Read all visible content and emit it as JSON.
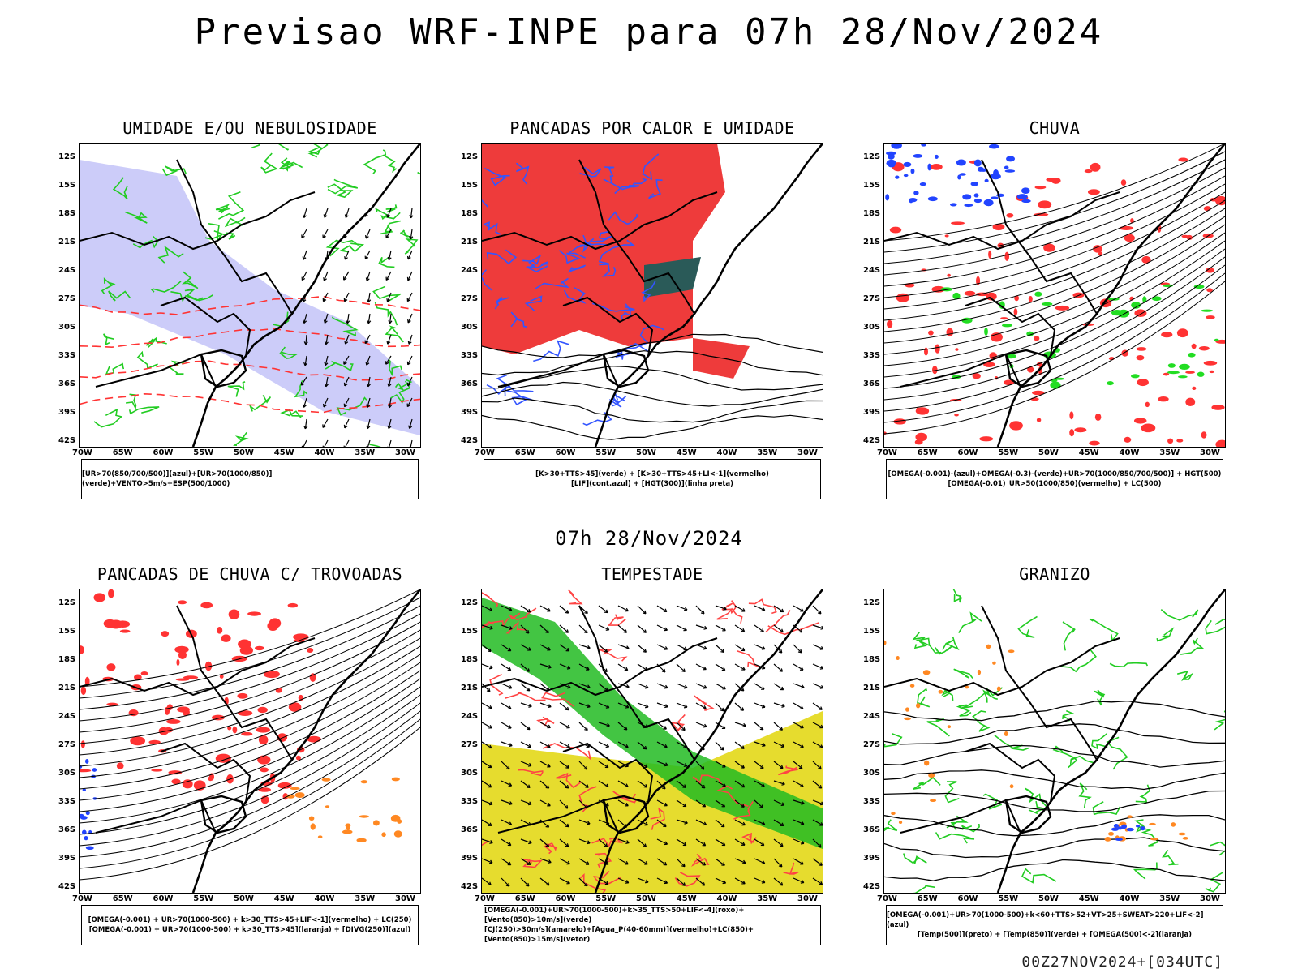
{
  "header": {
    "title": "Previsao WRF-INPE  para 07h 28/Nov/2024",
    "subtitle": "07h 28/Nov/2024",
    "footer": "00Z27NOV2024+[034UTC]"
  },
  "axes": {
    "lat_labels": [
      "12S",
      "15S",
      "18S",
      "21S",
      "24S",
      "27S",
      "30S",
      "33S",
      "36S",
      "39S",
      "42S"
    ],
    "lon_labels": [
      "70W",
      "65W",
      "60W",
      "55W",
      "50W",
      "45W",
      "40W",
      "35W",
      "30W"
    ]
  },
  "panels": [
    {
      "title": "UMIDADE E/OU NEBULOSIDADE",
      "legend_lines": [
        "[UR>70(850/700/500)](azul)+[UR>70(1000/850)](verde)+VENTO>5m/s+ESP(500/1000)"
      ],
      "theme": "umidade",
      "colors": [
        "#8e8ef2",
        "#22cc22",
        "#ff3333"
      ]
    },
    {
      "title": "PANCADAS POR CALOR E UMIDADE",
      "legend_lines": [
        "[K>30+TTS>45](verde) + [K>30+TTS>45+LI<-1](vermelho)",
        "[LIF](cont.azul) + [HGT(300)](linha preta)"
      ],
      "theme": "pancadas",
      "colors": [
        "#ee3b3b",
        "#2a5a58",
        "#3355ff"
      ]
    },
    {
      "title": "CHUVA",
      "legend_lines": [
        "[OMEGA(-0.001)-(azul)+OMEGA(-0.3)-(verde)+UR>70(1000/850/700/500)] + HGT(500)",
        "[OMEGA(-0.01)_UR>50(1000/850)(vermelho) + LC(500)"
      ],
      "theme": "chuva",
      "colors": [
        "#ff3333",
        "#2244ff",
        "#22dd22"
      ]
    },
    {
      "title": "PANCADAS DE CHUVA C/ TROVOADAS",
      "legend_lines": [
        "[OMEGA(-0.001) + UR>70(1000-500) + k>30_TTS>45+LIF<-1](vermelho) + LC(250)",
        "[OMEGA(-0.001) + UR>70(1000-500) + k>30_TTS>45](laranja) + [DIVG(250)](azul)"
      ],
      "theme": "trovoadas",
      "colors": [
        "#ff3333",
        "#ff8822",
        "#2244ff"
      ]
    },
    {
      "title": "TEMPESTADE",
      "legend_lines": [
        "[OMEGA(-0.001)+UR>70(1000-500)+k>35_TTS>50+LIF<-4](roxo)+[Vento(850)>10m/s](verde)",
        "[CJ(250)>30m/s](amarelo)+[Agua_P(40-60mm)](vermelho)+LC(850)+[Vento(850)>15m/s](vetor)"
      ],
      "theme": "tempestade",
      "colors": [
        "#e6dc2e",
        "#22bb22",
        "#ff4444"
      ]
    },
    {
      "title": "GRANIZO",
      "legend_lines": [
        "[OMEGA(-0.001)+UR>70(1000-500)+k<60+TTS>52+VT>25+SWEAT>220+LIF<-2](azul)",
        "[Temp(500)](preto) + [Temp(850)](verde) + [OMEGA(500)<-2](laranja)"
      ],
      "theme": "granizo",
      "colors": [
        "#22cc22",
        "#ff8822",
        "#2244ff"
      ]
    }
  ]
}
